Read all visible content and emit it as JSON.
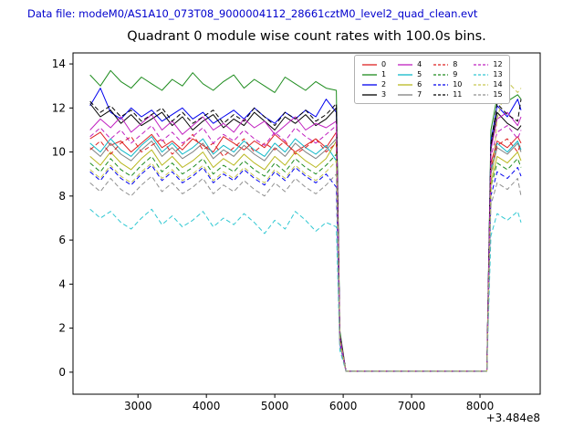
{
  "header": {
    "data_file_label": "Data file: modeM0/AS1A10_073T08_9000004112_28661cztM0_level2_quad_clean.evt",
    "header_text_color": "#0000cd"
  },
  "chart_data": {
    "type": "line",
    "title": "Quadrant 0 module wise count rates with 100.0s bins.",
    "xlabel": "",
    "ylabel": "",
    "x_offset_label": "+3.484e8",
    "xlim": [
      2050,
      8880
    ],
    "ylim": [
      -1,
      14.5
    ],
    "x_ticks": [
      3000,
      4000,
      5000,
      6000,
      7000,
      8000
    ],
    "y_ticks": [
      0,
      2,
      4,
      6,
      8,
      10,
      12,
      14
    ],
    "grid": false,
    "legend": {
      "position": "upper center-right",
      "columns": 4,
      "order": "column-major"
    },
    "x": [
      2300,
      2450,
      2600,
      2750,
      2900,
      3050,
      3200,
      3350,
      3500,
      3650,
      3800,
      3950,
      4100,
      4250,
      4400,
      4550,
      4700,
      4850,
      5000,
      5150,
      5300,
      5450,
      5600,
      5750,
      5900,
      5950,
      6040,
      8100,
      8160,
      8250,
      8400,
      8550,
      8600
    ],
    "series": [
      {
        "name": "0",
        "color": "#dd2222",
        "dash": false,
        "values": [
          10.6,
          10.9,
          10.3,
          10.5,
          10.0,
          10.4,
          10.8,
          10.2,
          10.5,
          10.1,
          10.6,
          10.3,
          10.0,
          10.7,
          10.4,
          10.1,
          10.5,
          10.2,
          10.8,
          10.4,
          10.0,
          10.3,
          10.6,
          10.2,
          10.9,
          1.6,
          0.05,
          0.05,
          9.5,
          10.5,
          10.2,
          10.7,
          10.4
        ]
      },
      {
        "name": "1",
        "color": "#1e8c1e",
        "dash": false,
        "values": [
          13.5,
          13.0,
          13.7,
          13.2,
          12.9,
          13.4,
          13.1,
          12.8,
          13.3,
          13.0,
          13.6,
          13.1,
          12.8,
          13.2,
          13.5,
          12.9,
          13.3,
          13.0,
          12.7,
          13.4,
          13.1,
          12.8,
          13.2,
          12.9,
          12.8,
          1.9,
          0.05,
          0.05,
          11.0,
          12.5,
          12.3,
          12.6,
          12.4
        ]
      },
      {
        "name": "2",
        "color": "#0000ee",
        "dash": false,
        "values": [
          12.1,
          12.9,
          11.8,
          11.5,
          12.0,
          11.6,
          11.9,
          11.4,
          11.7,
          12.0,
          11.5,
          11.8,
          11.3,
          11.6,
          11.9,
          11.5,
          12.0,
          11.6,
          11.3,
          11.8,
          11.5,
          11.9,
          11.6,
          12.4,
          11.8,
          1.7,
          0.05,
          0.05,
          10.5,
          12.1,
          11.6,
          12.4,
          11.9
        ]
      },
      {
        "name": "3",
        "color": "#000000",
        "dash": false,
        "values": [
          12.2,
          11.6,
          11.9,
          11.3,
          11.7,
          11.2,
          11.5,
          11.8,
          11.2,
          11.6,
          11.0,
          11.4,
          11.7,
          11.1,
          11.5,
          11.2,
          11.8,
          11.4,
          11.0,
          11.6,
          11.3,
          11.7,
          11.2,
          11.5,
          12.0,
          1.7,
          0.05,
          0.05,
          10.2,
          11.8,
          11.3,
          11.0,
          11.2
        ]
      },
      {
        "name": "4",
        "color": "#c020c0",
        "dash": false,
        "values": [
          11.0,
          11.5,
          11.1,
          11.6,
          10.9,
          11.3,
          11.7,
          11.0,
          11.4,
          10.8,
          11.2,
          11.6,
          11.0,
          11.3,
          10.9,
          11.5,
          11.1,
          11.4,
          10.8,
          11.2,
          11.6,
          11.0,
          11.3,
          11.1,
          11.4,
          1.7,
          0.05,
          0.05,
          10.1,
          11.5,
          11.8,
          11.2,
          11.6
        ]
      },
      {
        "name": "5",
        "color": "#10b8c8",
        "dash": false,
        "values": [
          10.4,
          10.0,
          10.6,
          10.1,
          9.8,
          10.3,
          10.7,
          10.0,
          10.4,
          9.9,
          10.2,
          10.6,
          9.9,
          10.3,
          10.0,
          10.5,
          10.1,
          9.8,
          10.4,
          10.0,
          10.6,
          10.2,
          9.9,
          10.3,
          9.6,
          1.5,
          0.05,
          0.05,
          9.2,
          10.4,
          10.0,
          10.5,
          10.1
        ]
      },
      {
        "name": "6",
        "color": "#b8b820",
        "dash": false,
        "values": [
          9.8,
          9.4,
          10.0,
          9.5,
          9.2,
          9.7,
          10.1,
          9.4,
          9.8,
          9.3,
          9.6,
          10.0,
          9.3,
          9.7,
          9.4,
          9.9,
          9.5,
          9.2,
          9.8,
          9.4,
          10.0,
          9.6,
          9.3,
          9.7,
          10.5,
          1.4,
          0.05,
          0.05,
          8.6,
          9.8,
          9.5,
          10.0,
          9.6
        ]
      },
      {
        "name": "7",
        "color": "#808080",
        "dash": false,
        "values": [
          10.2,
          9.8,
          10.4,
          9.9,
          9.6,
          10.1,
          10.5,
          9.8,
          10.2,
          9.7,
          10.0,
          10.4,
          9.7,
          10.1,
          9.8,
          10.3,
          9.9,
          9.6,
          10.2,
          9.8,
          10.4,
          10.0,
          9.7,
          10.1,
          10.6,
          1.5,
          0.05,
          0.05,
          9.0,
          10.2,
          9.9,
          10.4,
          10.0
        ]
      },
      {
        "name": "8",
        "color": "#dd2222",
        "dash": true,
        "values": [
          10.1,
          10.5,
          9.9,
          10.4,
          10.7,
          10.0,
          10.3,
          10.6,
          9.9,
          10.3,
          10.8,
          10.1,
          10.4,
          9.8,
          10.2,
          10.6,
          10.0,
          10.4,
          10.1,
          10.5,
          9.9,
          10.2,
          10.6,
          10.0,
          10.4,
          1.5,
          0.05,
          0.05,
          9.3,
          10.3,
          10.6,
          10.0,
          10.4
        ]
      },
      {
        "name": "9",
        "color": "#1e8c1e",
        "dash": true,
        "values": [
          9.5,
          9.1,
          9.7,
          9.2,
          8.9,
          9.4,
          9.8,
          9.1,
          9.5,
          9.0,
          9.3,
          9.7,
          9.0,
          9.4,
          9.1,
          9.6,
          9.2,
          8.9,
          9.5,
          9.1,
          9.7,
          9.3,
          9.0,
          9.4,
          9.9,
          1.4,
          0.05,
          0.05,
          8.4,
          9.5,
          9.2,
          9.7,
          9.3
        ]
      },
      {
        "name": "10",
        "color": "#0000ee",
        "dash": true,
        "values": [
          9.1,
          8.7,
          9.3,
          8.8,
          8.5,
          9.0,
          9.4,
          8.7,
          9.1,
          8.6,
          8.9,
          9.3,
          8.6,
          9.0,
          8.7,
          9.2,
          8.8,
          8.5,
          9.1,
          8.7,
          9.3,
          8.9,
          8.6,
          9.0,
          8.4,
          1.3,
          0.05,
          0.05,
          8.0,
          9.1,
          8.8,
          9.3,
          8.9
        ]
      },
      {
        "name": "11",
        "color": "#000000",
        "dash": true,
        "values": [
          12.3,
          11.8,
          12.1,
          11.6,
          11.9,
          11.4,
          11.7,
          12.0,
          11.4,
          11.8,
          11.3,
          11.6,
          11.9,
          11.3,
          11.7,
          11.4,
          12.0,
          11.6,
          11.2,
          11.8,
          11.5,
          11.9,
          11.4,
          11.7,
          12.2,
          1.7,
          0.05,
          0.05,
          10.4,
          12.2,
          11.7,
          11.4,
          12.4
        ]
      },
      {
        "name": "12",
        "color": "#c020c0",
        "dash": true,
        "values": [
          10.7,
          11.1,
          10.6,
          11.0,
          10.4,
          10.8,
          11.2,
          10.5,
          10.9,
          10.4,
          10.7,
          11.1,
          10.4,
          10.8,
          10.5,
          11.0,
          10.6,
          10.3,
          10.9,
          10.5,
          11.1,
          10.7,
          10.4,
          10.8,
          11.2,
          1.6,
          0.05,
          0.05,
          9.8,
          10.9,
          11.2,
          10.6,
          11.0
        ]
      },
      {
        "name": "13",
        "color": "#30c8d2",
        "dash": true,
        "values": [
          7.4,
          7.0,
          7.3,
          6.8,
          6.5,
          7.0,
          7.4,
          6.7,
          7.1,
          6.6,
          6.9,
          7.3,
          6.6,
          7.0,
          6.7,
          7.2,
          6.8,
          6.3,
          6.9,
          6.5,
          7.3,
          6.9,
          6.4,
          6.8,
          6.6,
          1.0,
          0.05,
          0.05,
          6.2,
          7.2,
          6.9,
          7.3,
          6.8
        ]
      },
      {
        "name": "14",
        "color": "#c6c650",
        "dash": true,
        "values": [
          9.2,
          8.8,
          9.4,
          8.9,
          8.6,
          9.1,
          9.5,
          8.8,
          9.2,
          8.7,
          9.0,
          9.4,
          8.7,
          9.1,
          8.8,
          9.3,
          8.9,
          8.6,
          9.2,
          8.8,
          9.4,
          9.0,
          8.7,
          9.1,
          9.6,
          1.4,
          0.05,
          0.05,
          8.1,
          11.5,
          13.2,
          12.7,
          12.9
        ]
      },
      {
        "name": "15",
        "color": "#909090",
        "dash": true,
        "values": [
          8.6,
          8.2,
          8.8,
          8.3,
          8.0,
          8.5,
          8.9,
          8.2,
          8.6,
          8.1,
          8.4,
          8.8,
          8.1,
          8.5,
          8.2,
          8.7,
          8.3,
          8.0,
          8.6,
          8.2,
          8.8,
          8.4,
          8.1,
          8.5,
          9.0,
          1.2,
          0.05,
          0.05,
          7.6,
          8.6,
          8.3,
          8.8,
          8.0
        ]
      }
    ]
  }
}
